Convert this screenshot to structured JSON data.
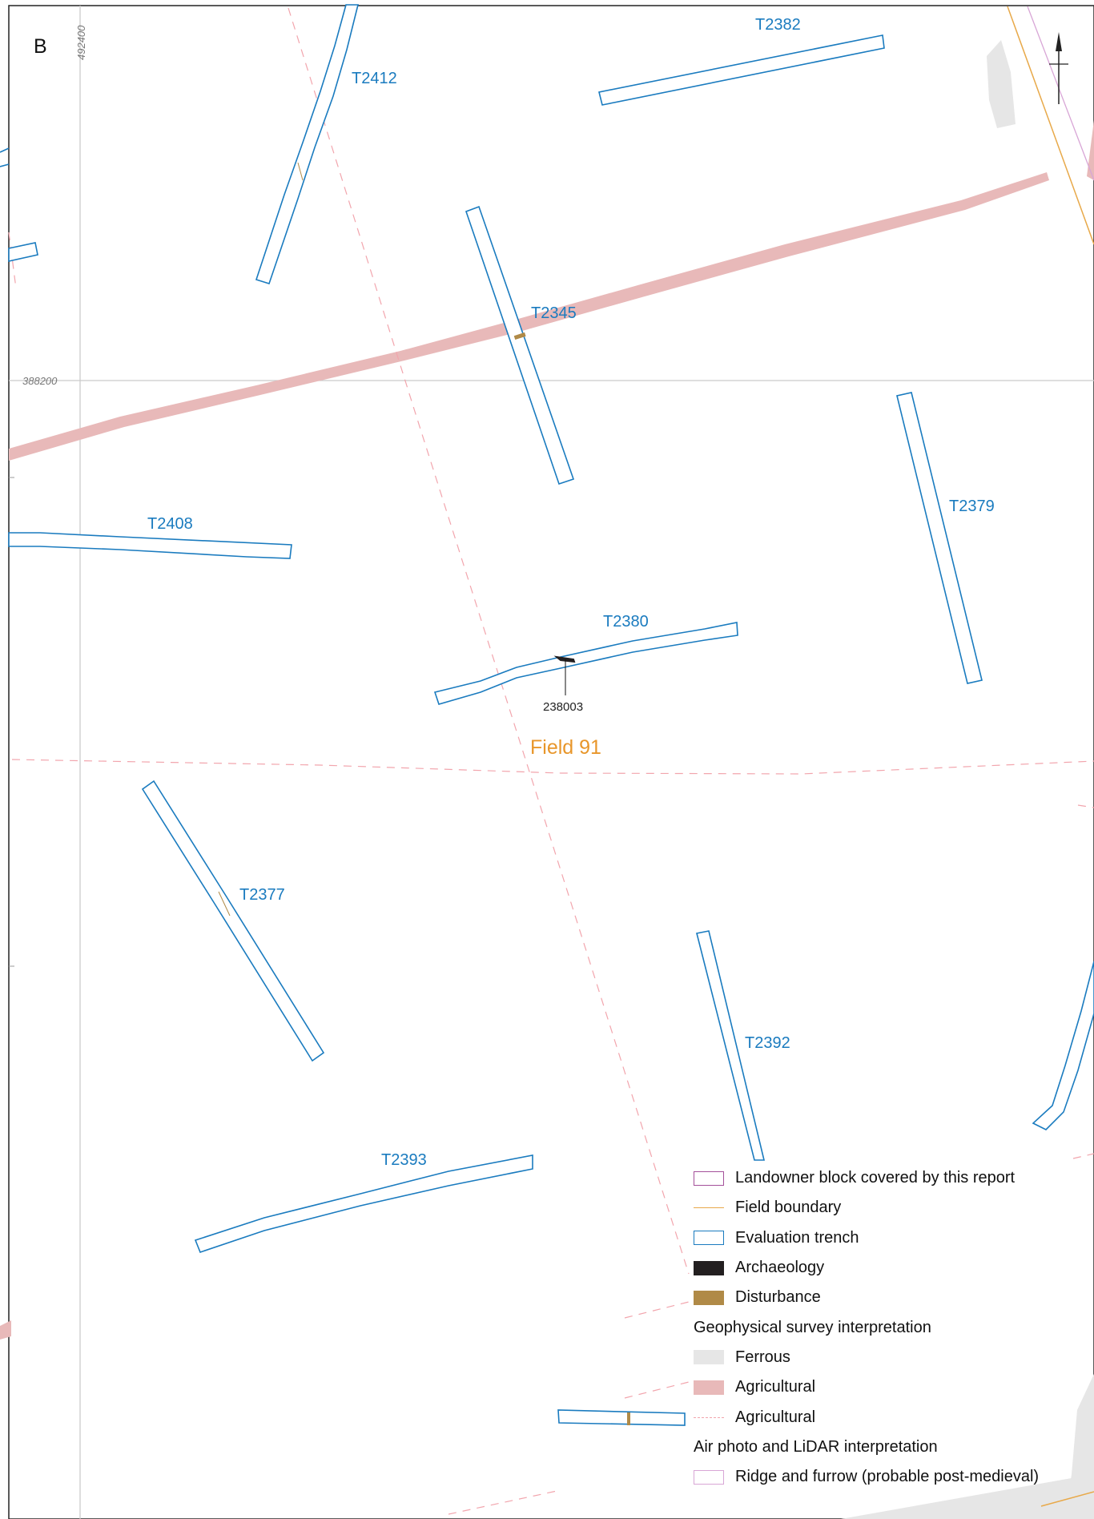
{
  "panel_label": "B",
  "grid": {
    "easting_label": "492400",
    "northing_label": "388200"
  },
  "field_label": "Field 91",
  "feature_label": "238003",
  "trenches": [
    "T2382",
    "T2412",
    "T2345",
    "T2408",
    "T2379",
    "T2380",
    "T2377",
    "T2392",
    "T2393"
  ],
  "north_arrow": {
    "icon": "north-arrow-icon"
  },
  "legend": {
    "items": [
      {
        "label": "Landowner block covered by this report",
        "swatch": "outline",
        "color": "#a4509a"
      },
      {
        "label": "Field boundary",
        "swatch": "line",
        "color": "#e8a94a"
      },
      {
        "label": "Evaluation trench",
        "swatch": "outline",
        "color": "#1a7bbf"
      },
      {
        "label": "Archaeology",
        "swatch": "fill",
        "color": "#231f20"
      },
      {
        "label": "Disturbance",
        "swatch": "fill",
        "color": "#b08a47"
      }
    ],
    "geophys_heading": "Geophysical survey interpretation",
    "geophys_items": [
      {
        "label": "Ferrous",
        "swatch": "fill",
        "color": "#e6e6e6"
      },
      {
        "label": "Agricultural",
        "swatch": "fill",
        "color": "#e8b9b9"
      },
      {
        "label": "Agricultural",
        "swatch": "dash",
        "color": "#f2a5ad"
      }
    ],
    "airphoto_heading": "Air photo and LiDAR interpretation",
    "airphoto_items": [
      {
        "label": "Ridge and furrow (probable post-medieval)",
        "swatch": "outline",
        "color": "#d8a6d6"
      }
    ]
  },
  "colors": {
    "trench": "#1a7bbf",
    "agricultural_fill": "#e8b9b9",
    "agricultural_dash": "#f2a5ad",
    "ferrous": "#e6e6e6",
    "field_boundary": "#e8a94a",
    "landowner_block": "#a4509a",
    "ridge_furrow": "#d8a6d6",
    "archaeology": "#231f20",
    "disturbance": "#b08a47",
    "field_label": "#e8962a"
  }
}
